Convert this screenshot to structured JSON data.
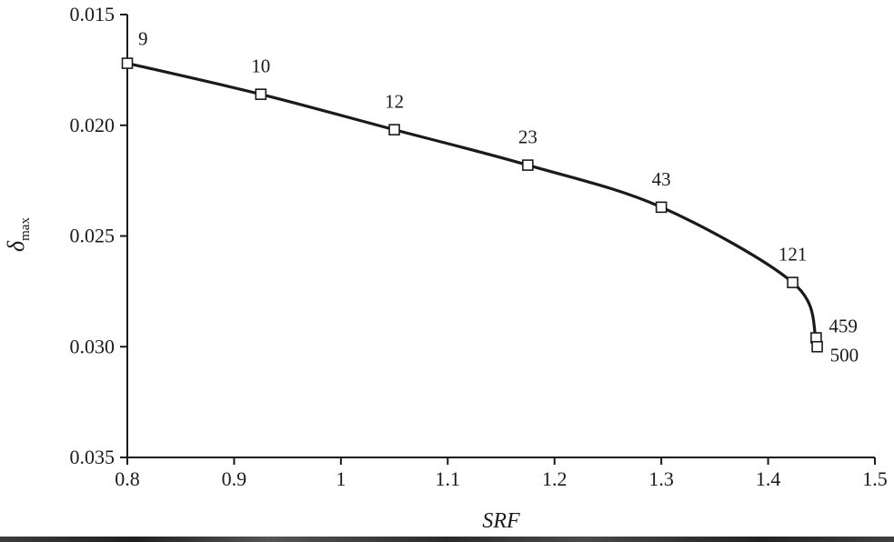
{
  "chart_data": {
    "type": "line",
    "title": "",
    "xlabel": "SRF",
    "ylabel": "δmax",
    "ylabel_symbol": "δ",
    "ylabel_sub": "max",
    "x": [
      0.8,
      0.925,
      1.05,
      1.175,
      1.3,
      1.423,
      1.445,
      1.446
    ],
    "y": [
      0.0172,
      0.0186,
      0.0202,
      0.0218,
      0.0237,
      0.0271,
      0.0296,
      0.03
    ],
    "point_labels": [
      "9",
      "10",
      "12",
      "23",
      "43",
      "121",
      "459",
      "500"
    ],
    "series_name": "delta-max-vs-srf",
    "xlim": [
      0.8,
      1.5
    ],
    "ylim": [
      0.015,
      0.035
    ],
    "y_axis_increases_downward": true,
    "x_ticks": [
      "0.8",
      "0.9",
      "1",
      "1.1",
      "1.2",
      "1.3",
      "1.4",
      "1.5"
    ],
    "x_tick_values": [
      0.8,
      0.9,
      1.0,
      1.1,
      1.2,
      1.3,
      1.4,
      1.5
    ],
    "y_ticks": [
      "0.015",
      "0.020",
      "0.025",
      "0.030",
      "0.035"
    ],
    "y_tick_values": [
      0.015,
      0.02,
      0.025,
      0.03,
      0.035
    ],
    "grid": false,
    "legend": "none",
    "marker": "open-square",
    "line_color": "#1a1a1a",
    "background_color": "#ffffff",
    "label_offsets": [
      [
        12,
        -20,
        "start"
      ],
      [
        0,
        -24,
        "middle"
      ],
      [
        0,
        -24,
        "middle"
      ],
      [
        0,
        -24,
        "middle"
      ],
      [
        0,
        -24,
        "middle"
      ],
      [
        0,
        -24,
        "middle"
      ],
      [
        14,
        -6,
        "start"
      ],
      [
        14,
        16,
        "start"
      ]
    ]
  }
}
